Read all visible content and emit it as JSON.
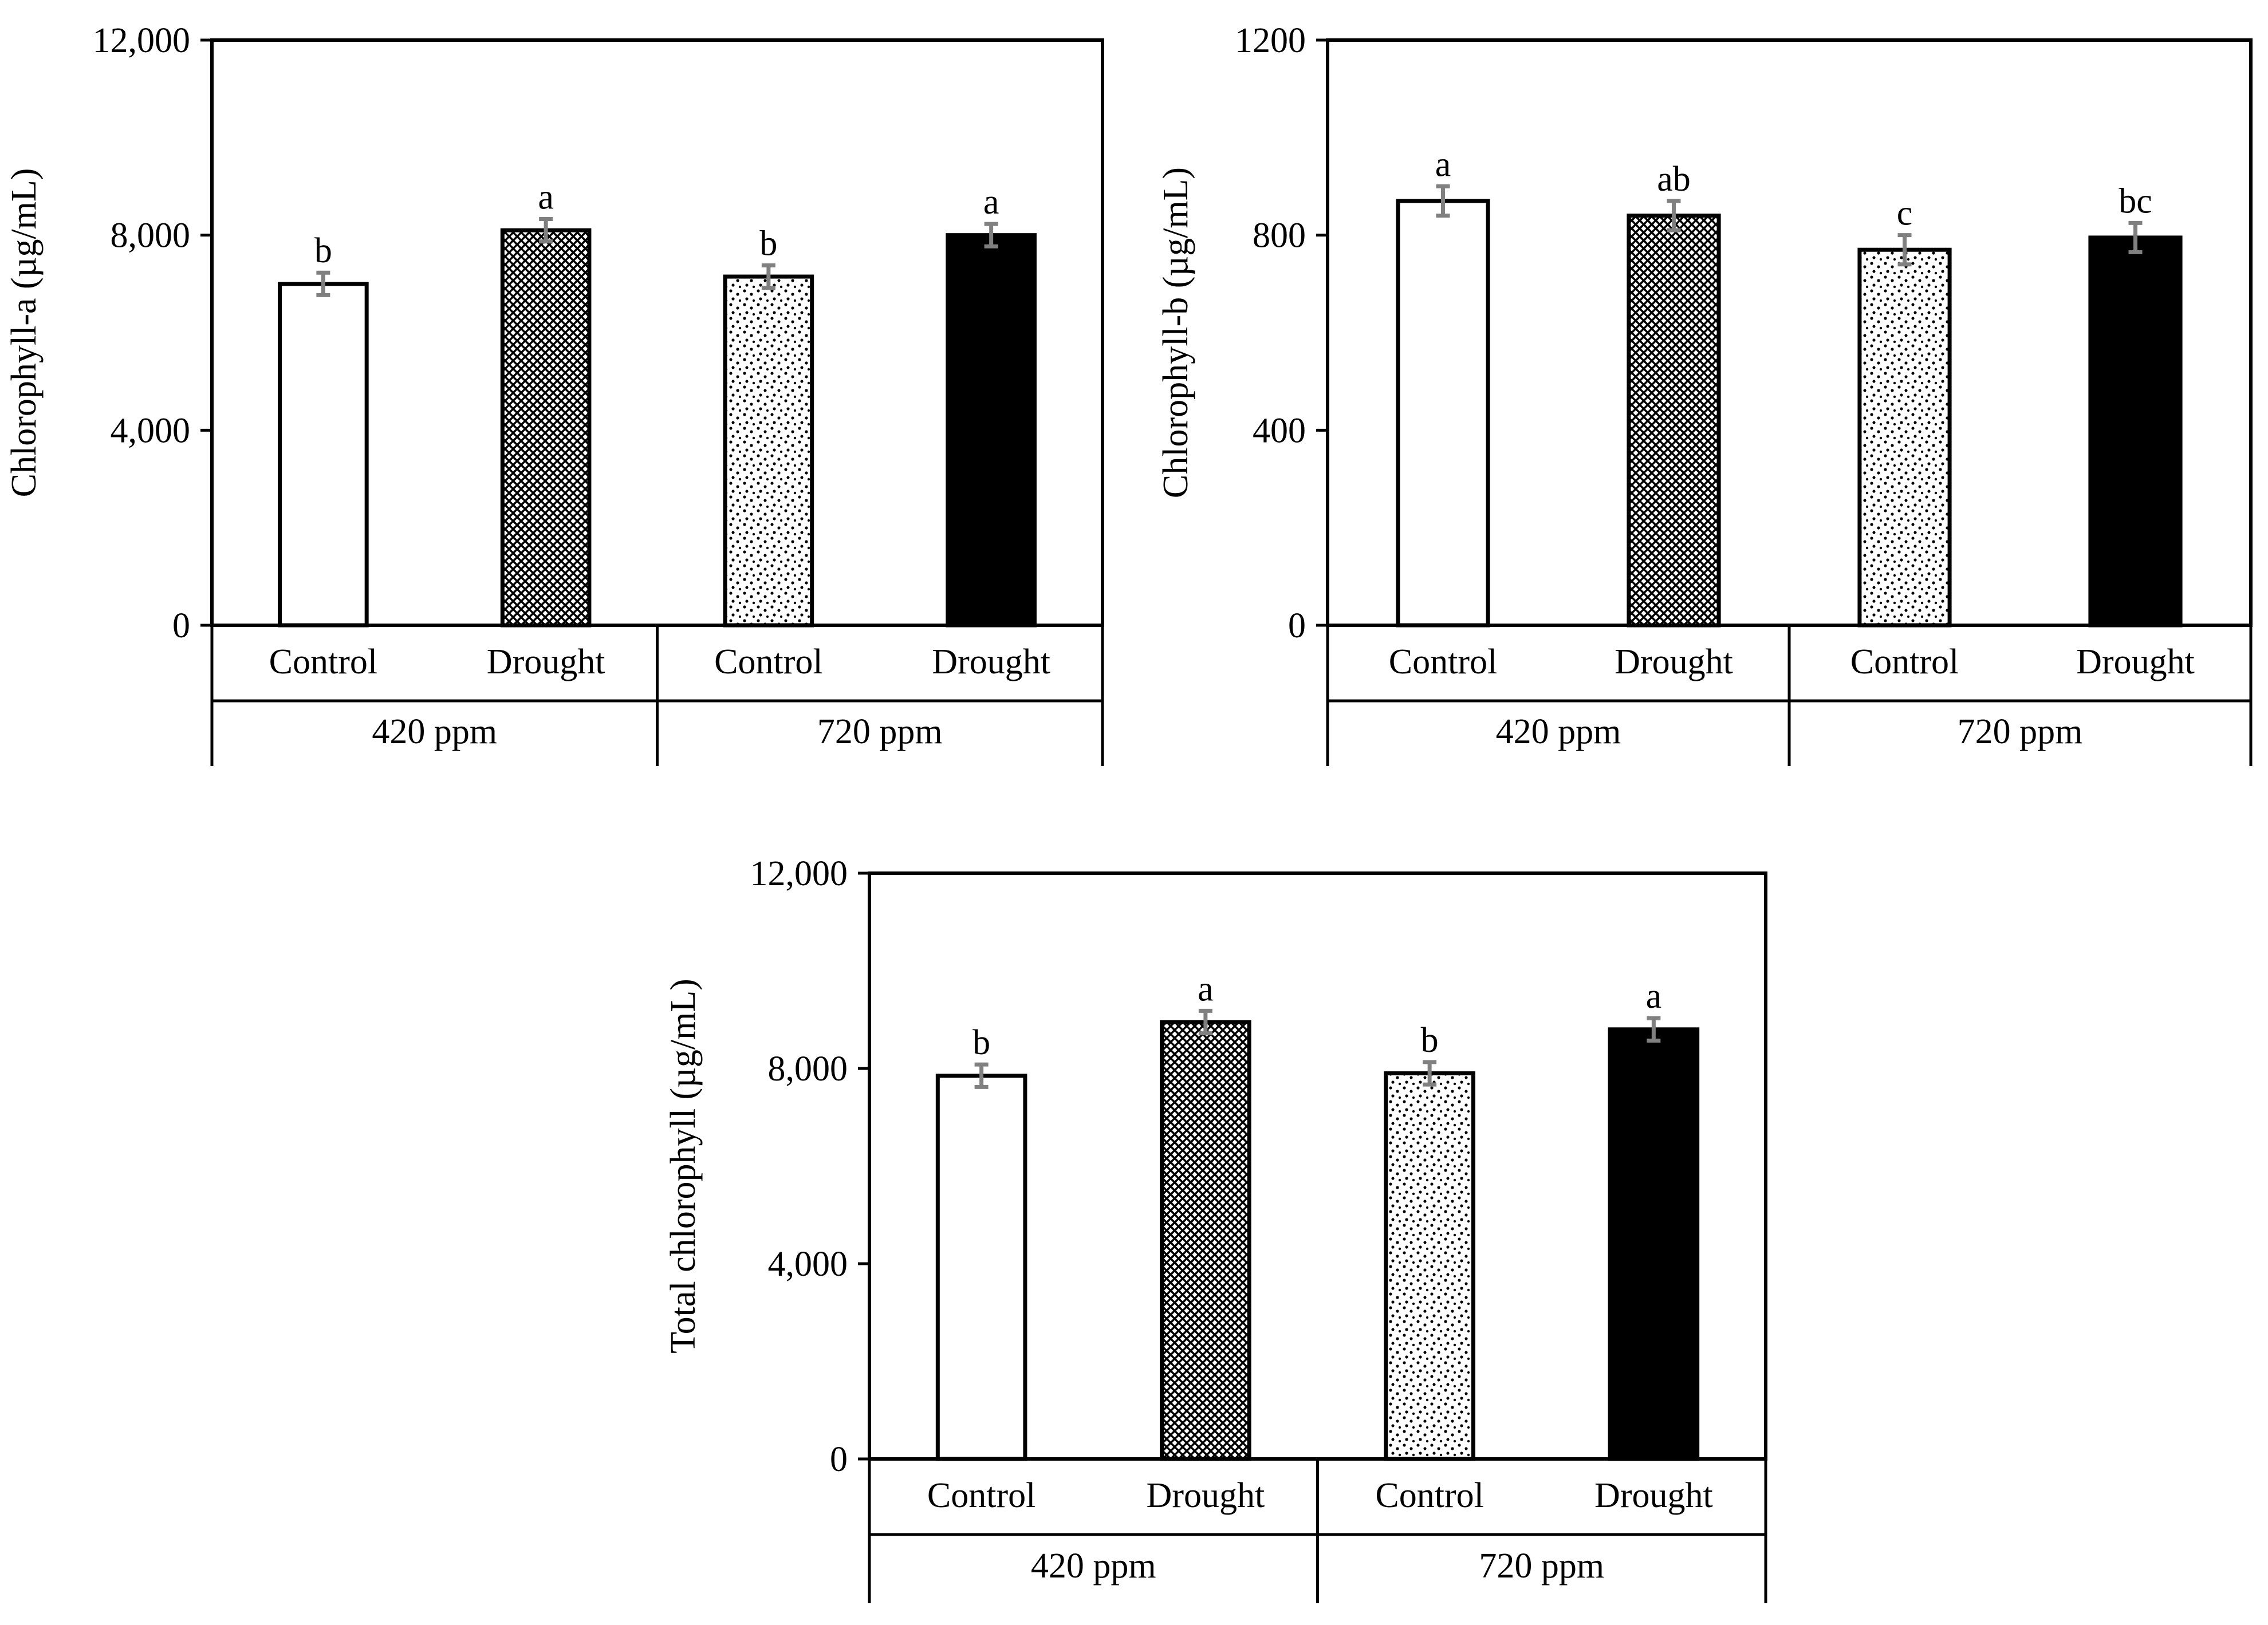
{
  "colors": {
    "ink": "#000000",
    "bar_white": "#ffffff",
    "error_bar": "#808080",
    "pattern_dense": "#000000",
    "pattern_dots": "#000000"
  },
  "icons": [
    "crosshatch-pattern",
    "dotted-pattern"
  ],
  "chart_data": [
    {
      "type": "bar",
      "ylabel": "Chlorophyll-a (µg/mL)",
      "ylim": [
        0,
        12000
      ],
      "yticks": [
        0,
        4000,
        8000,
        12000
      ],
      "ytick_labels": [
        "0",
        "4,000",
        "8,000",
        "12,000"
      ],
      "groups": [
        "420 ppm",
        "720 ppm"
      ],
      "categories": [
        "Control",
        "Drought",
        "Control",
        "Drought"
      ],
      "values": [
        7000,
        8100,
        7150,
        8000
      ],
      "errors": [
        230,
        230,
        230,
        230
      ],
      "significance": [
        "b",
        "a",
        "b",
        "a"
      ],
      "fills": [
        "white",
        "crosshatch",
        "dotted",
        "black"
      ]
    },
    {
      "type": "bar",
      "ylabel": "Chlorophyll-b (µg/mL)",
      "ylim": [
        0,
        1200
      ],
      "yticks": [
        0,
        400,
        800,
        1200
      ],
      "ytick_labels": [
        "0",
        "400",
        "800",
        "1200"
      ],
      "groups": [
        "420 ppm",
        "720 ppm"
      ],
      "categories": [
        "Control",
        "Drought",
        "Control",
        "Drought"
      ],
      "values": [
        870,
        840,
        770,
        795
      ],
      "errors": [
        30,
        30,
        30,
        30
      ],
      "significance": [
        "a",
        "ab",
        "c",
        "bc"
      ],
      "fills": [
        "white",
        "crosshatch",
        "dotted",
        "black"
      ]
    },
    {
      "type": "bar",
      "ylabel": "Total chlorophyll  (µg/mL)",
      "ylim": [
        0,
        12000
      ],
      "yticks": [
        0,
        4000,
        8000,
        12000
      ],
      "ytick_labels": [
        "0",
        "4,000",
        "8,000",
        "12,000"
      ],
      "groups": [
        "420 ppm",
        "720 ppm"
      ],
      "categories": [
        "Control",
        "Drought",
        "Control",
        "Drought"
      ],
      "values": [
        7850,
        8950,
        7900,
        8800
      ],
      "errors": [
        230,
        230,
        230,
        230
      ],
      "significance": [
        "b",
        "a",
        "b",
        "a"
      ],
      "fills": [
        "white",
        "crosshatch",
        "dotted",
        "black"
      ]
    }
  ]
}
